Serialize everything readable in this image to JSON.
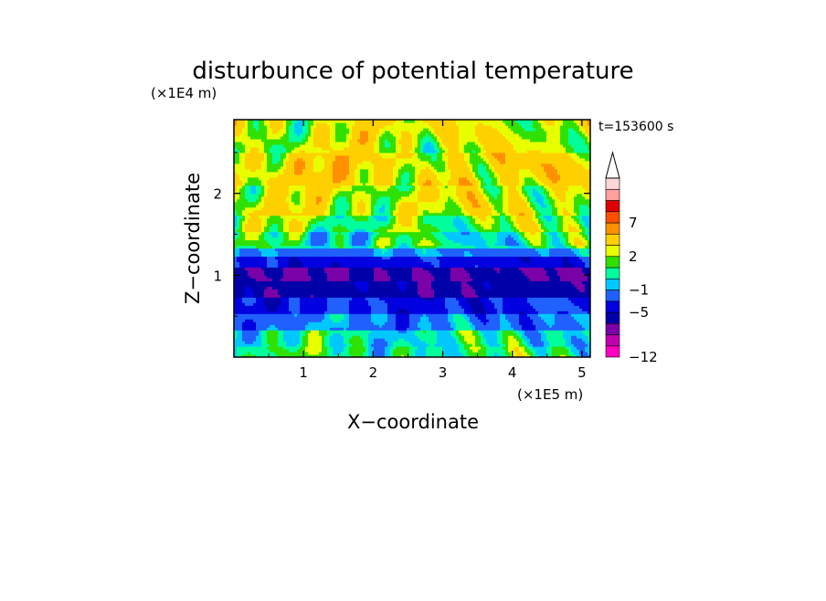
{
  "chart_data": {
    "type": "heatmap",
    "title": "disturbunce of potential temperature",
    "xlabel": "X−coordinate",
    "ylabel": "Z−coordinate",
    "x_multiplier": "(×1E5 m)",
    "y_multiplier": "(×1E4 m)",
    "time_label": "t=153600 s",
    "xlim": [
      0,
      5.12
    ],
    "ylim": [
      0,
      2.9
    ],
    "x_ticks": [
      1,
      2,
      3,
      4,
      5
    ],
    "y_ticks": [
      1,
      2
    ],
    "x_tick_labels": [
      "1",
      "2",
      "3",
      "4",
      "5"
    ],
    "y_tick_labels": [
      "1",
      "2"
    ],
    "colorbar": {
      "levels": [
        -12,
        -11,
        -9,
        -7,
        -5,
        -3,
        -1,
        0,
        1,
        2,
        3,
        5,
        7,
        9,
        11
      ],
      "labeled_levels": [
        -12,
        -5,
        -1,
        2,
        7
      ],
      "labels": [
        "−12",
        "−5",
        "−1",
        "2",
        "7"
      ],
      "colors": [
        "#ff00c0",
        "#c000b0",
        "#7a00a8",
        "#0000a8",
        "#0000e0",
        "#2060ff",
        "#00c8ff",
        "#00ff9c",
        "#30e000",
        "#e8ff00",
        "#ffd000",
        "#ff9000",
        "#ff5000",
        "#e00000",
        "#ffa0a0",
        "#ffd6d6"
      ],
      "extend": "max"
    },
    "bands": [
      {
        "z_min": 0.0,
        "z_max": 0.15,
        "value": 0.8
      },
      {
        "z_min": 0.15,
        "z_max": 0.35,
        "value": 0.3
      },
      {
        "z_min": 0.35,
        "z_max": 0.55,
        "value": -1.5
      },
      {
        "z_min": 0.55,
        "z_max": 0.75,
        "value": -3.5
      },
      {
        "z_min": 0.75,
        "z_max": 0.95,
        "value": -6
      },
      {
        "z_min": 0.95,
        "z_max": 1.1,
        "value": -7
      },
      {
        "z_min": 1.1,
        "z_max": 1.22,
        "value": -4
      },
      {
        "z_min": 1.22,
        "z_max": 1.35,
        "value": -1.5
      },
      {
        "z_min": 1.35,
        "z_max": 1.55,
        "value": 0.5
      },
      {
        "z_min": 1.55,
        "z_max": 1.75,
        "value": 1.5
      },
      {
        "z_min": 1.75,
        "z_max": 2.1,
        "value": 2.5
      },
      {
        "z_min": 2.1,
        "z_max": 2.5,
        "value": 3.5
      },
      {
        "z_min": 2.5,
        "z_max": 2.9,
        "value": 2.5
      }
    ]
  }
}
